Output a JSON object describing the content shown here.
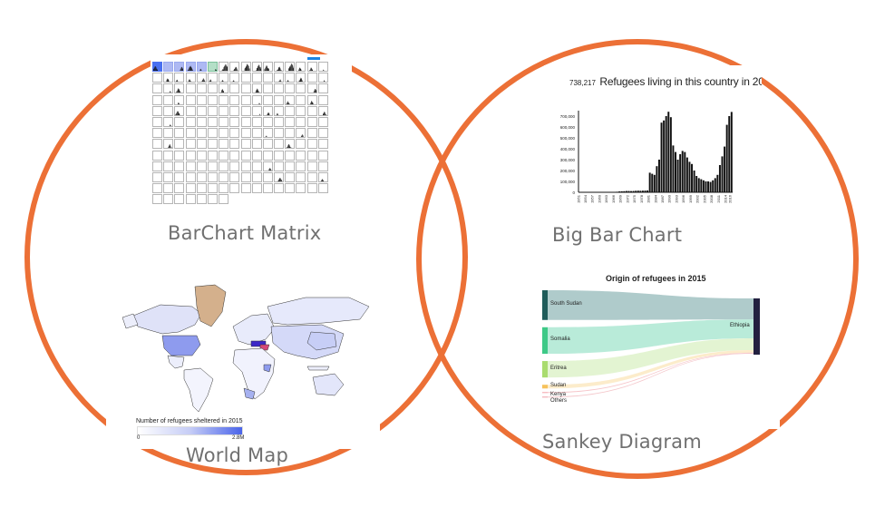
{
  "captions": {
    "matrix": "BarChart Matrix",
    "bigbar": "Big Bar Chart",
    "map": "World Map",
    "sankey": "Sankey Diagram"
  },
  "colors": {
    "ring": "#ec7036",
    "caption": "#707070",
    "matrix_selected": "#4a6ff0",
    "map_highlight": "#4a64ea",
    "map_greenland": "#d4b08c"
  },
  "matrix": {
    "columns": 16,
    "rows": 13,
    "note": ""
  },
  "bigbar": {
    "count": "738,217",
    "title": "Refugees living in this country in 20",
    "chart_data": {
      "type": "bar",
      "title": "",
      "xlabel": "",
      "ylabel": "",
      "ylim": [
        0,
        750000
      ],
      "y_ticks": [
        "0",
        "100,000",
        "200,000",
        "300,000",
        "400,000",
        "500,000",
        "600,000",
        "700,000"
      ],
      "x_ticks": [
        "1951",
        "1954",
        "1957",
        "1960",
        "1963",
        "1966",
        "1969",
        "1972",
        "1975",
        "1978",
        "1981",
        "1984",
        "1987",
        "1990",
        "1993",
        "1996",
        "1999",
        "2002",
        "2005",
        "2008",
        "2011",
        "2014",
        "2016"
      ],
      "categories": [
        1951,
        1952,
        1953,
        1954,
        1955,
        1956,
        1957,
        1958,
        1959,
        1960,
        1961,
        1962,
        1963,
        1964,
        1965,
        1966,
        1967,
        1968,
        1969,
        1970,
        1971,
        1972,
        1973,
        1974,
        1975,
        1976,
        1977,
        1978,
        1979,
        1980,
        1981,
        1982,
        1983,
        1984,
        1985,
        1986,
        1987,
        1988,
        1989,
        1990,
        1991,
        1992,
        1993,
        1994,
        1995,
        1996,
        1997,
        1998,
        1999,
        2000,
        2001,
        2002,
        2003,
        2004,
        2005,
        2006,
        2007,
        2008,
        2009,
        2010,
        2011,
        2012,
        2013,
        2014,
        2015,
        2016
      ],
      "values": [
        0,
        0,
        0,
        0,
        0,
        0,
        0,
        0,
        0,
        0,
        0,
        0,
        0,
        0,
        0,
        0,
        5000,
        8000,
        9000,
        10000,
        12000,
        12000,
        11000,
        12000,
        14000,
        15000,
        14000,
        15000,
        16000,
        17000,
        180000,
        170000,
        160000,
        240000,
        300000,
        640000,
        660000,
        700000,
        740000,
        690000,
        430000,
        370000,
        300000,
        350000,
        380000,
        370000,
        320000,
        280000,
        260000,
        200000,
        150000,
        130000,
        120000,
        110000,
        100000,
        100000,
        95000,
        110000,
        130000,
        160000,
        250000,
        330000,
        420000,
        620000,
        700000,
        738217
      ]
    }
  },
  "map": {
    "legend_title": "Number of refugees sheltered in 2015",
    "legend_min": "0",
    "legend_max": "2.8M"
  },
  "sankey": {
    "title": "Origin of refugees in 2015",
    "sources": [
      {
        "label": "South Sudan",
        "value": 280000,
        "color": "#1f5c5a",
        "flow": "#abc8c8"
      },
      {
        "label": "Somalia",
        "value": 250000,
        "color": "#3ec987",
        "flow": "#b5ead7"
      },
      {
        "label": "Eritrea",
        "value": 155000,
        "color": "#a9dc6e",
        "flow": "#e2f3d0"
      },
      {
        "label": "Sudan",
        "value": 35000,
        "color": "#f6c25c",
        "flow": "#fcebc8"
      },
      {
        "label": "Kenya",
        "value": 4000,
        "color": "#f3a1a8",
        "flow": "#f6c1c5"
      },
      {
        "label": "Others",
        "value": 2000,
        "color": "#f0a0a8",
        "flow": "#f3c4c8"
      }
    ],
    "target": {
      "label": "Ethiopia",
      "color": "#232040"
    }
  }
}
